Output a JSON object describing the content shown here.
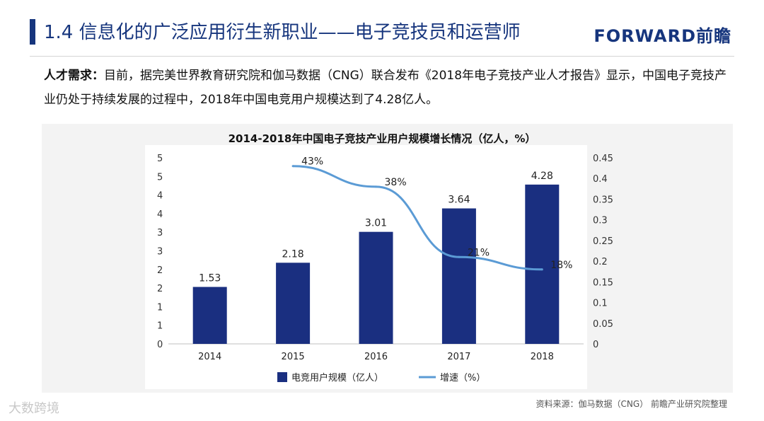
{
  "slide": {
    "title": "1.4 信息化的广泛应用衍生新职业——电子竞技员和运营师",
    "brand": "FORWARD前瞻",
    "intro_label": "人才需求：",
    "intro_text": "目前，据完美世界教育研究院和伽马数据（CNG）联合发布《2018年电子竞技产业人才报告》显示，中国电子竞技产业仍处于持续发展的过程中，2018年中国电竞用户规模达到了4.28亿人。",
    "source": "资料来源：伽马数据（CNG） 前瞻产业研究院整理",
    "corner_logo": "大数跨境"
  },
  "colors": {
    "bar": "#1a2f80",
    "line": "#5b9bd5",
    "title": "#16357d"
  },
  "chart_data": {
    "type": "bar",
    "title": "2014-2018年中国电子竞技产业用户规模增长情况（亿人，%）",
    "categories": [
      "2014",
      "2015",
      "2016",
      "2017",
      "2018"
    ],
    "series": [
      {
        "name": "电竞用户规模（亿人）",
        "type": "bar",
        "axis": "left",
        "values": [
          1.53,
          2.18,
          3.01,
          3.64,
          4.28
        ],
        "labels": [
          "1.53",
          "2.18",
          "3.01",
          "3.64",
          "4.28"
        ]
      },
      {
        "name": "增速（%）",
        "type": "line",
        "axis": "right",
        "values": [
          null,
          0.43,
          0.38,
          0.21,
          0.18
        ],
        "labels": [
          "",
          "43%",
          "38%",
          "21%",
          "18%"
        ]
      }
    ],
    "y_left": {
      "ylim": [
        0,
        5
      ],
      "ticks": [
        0,
        0.5,
        1,
        1.5,
        2,
        2.5,
        3,
        3.5,
        4,
        4.5,
        5
      ],
      "tick_labels": [
        "0",
        "1",
        "1",
        "2",
        "2",
        "3",
        "3",
        "4",
        "4",
        "5",
        "5"
      ]
    },
    "y_right": {
      "ylim": [
        0,
        0.45
      ],
      "ticks": [
        0,
        0.05,
        0.1,
        0.15,
        0.2,
        0.25,
        0.3,
        0.35,
        0.4,
        0.45
      ],
      "tick_labels": [
        "0",
        "0.05",
        "0.1",
        "0.15",
        "0.2",
        "0.25",
        "0.3",
        "0.35",
        "0.4",
        "0.45"
      ]
    },
    "legend_position": "bottom"
  }
}
